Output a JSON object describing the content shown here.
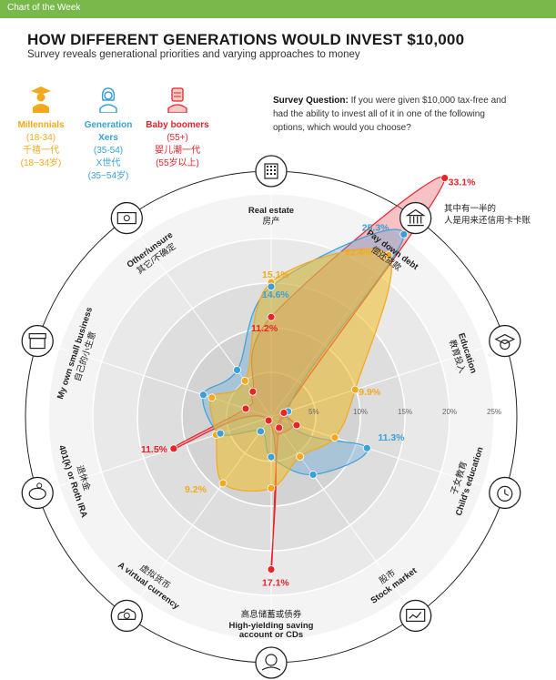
{
  "header": {
    "tag": "Chart of the Week"
  },
  "title": "HOW DIFFERENT GENERATIONS WOULD INVEST $10,000",
  "subtitle": "Survey reveals generational priorities and varying approaches to money",
  "survey": {
    "label": "Survey Question:",
    "text": "If you were given $10,000 tax-free and had the ability to invest all of it in one of the following options, which would you choose?"
  },
  "colors": {
    "millennials": "#f2a91e",
    "genx": "#3aa0d8",
    "boomers": "#e8232a",
    "bar": "#79b84a"
  },
  "generations": [
    {
      "en": "Millennials",
      "range": "(18-34)",
      "cn": "千禧一代",
      "cn_range": "(18~34岁)",
      "color": "#f2a91e",
      "icon": "graduate-icon"
    },
    {
      "en": "Generation Xers",
      "range": "(35-54)",
      "cn": "X世代",
      "cn_range": "(35~54岁)",
      "color": "#3aa0d8",
      "icon": "woman-icon"
    },
    {
      "en": "Baby boomers",
      "range": "(55+)",
      "cn": "婴儿潮一代",
      "cn_range": "(55岁以上)",
      "color": "#e8232a",
      "icon": "man-icon"
    }
  ],
  "chart_data": {
    "type": "radar",
    "rmax": 25,
    "ticks": [
      5,
      10,
      15,
      20,
      25
    ],
    "tick_labels": [
      "5%",
      "10%",
      "15%",
      "20%",
      "25%"
    ],
    "categories": [
      {
        "en": "Real estate",
        "cn": "房产",
        "icon": "building-icon"
      },
      {
        "en": "Pay down debt",
        "cn": "偿还贷款",
        "icon": "bank-icon"
      },
      {
        "en": "Education",
        "cn": "教育投入",
        "icon": "graduation-cap-icon"
      },
      {
        "en": "Child's education",
        "cn": "子女教育",
        "icon": "alarm-clock-icon"
      },
      {
        "en": "Stock market",
        "cn": "股市",
        "icon": "chart-board-icon"
      },
      {
        "en": "High-yielding saving account or CDs",
        "cn": "高息储蓄或债券",
        "icon": "money-hand-icon"
      },
      {
        "en": "A virtual currency",
        "cn": "虚拟货币",
        "icon": "cloud-coin-icon"
      },
      {
        "en": "401(k) or Roth IRA",
        "cn": "退休金",
        "icon": "piggy-bank-icon"
      },
      {
        "en": "My own small business",
        "cn": "自己的小生意",
        "icon": "shop-icon"
      },
      {
        "en": "Other/unsure",
        "cn": "其它/不确定",
        "icon": "cash-icon"
      }
    ],
    "side_note": "其中有一半的人是用来还信用卡卡账",
    "series": [
      {
        "name": "Millennials",
        "color": "#f2a91e",
        "values": [
          15.1,
          22.4,
          9.9,
          7.5,
          5.5,
          8.0,
          9.2,
          6.5,
          7.0,
          5.0
        ]
      },
      {
        "name": "Generation Xers",
        "color": "#3aa0d8",
        "values": [
          14.6,
          25.3,
          2.0,
          11.3,
          8.0,
          4.5,
          2.0,
          6.0,
          8.0,
          6.5
        ]
      },
      {
        "name": "Baby boomers",
        "color": "#e8232a",
        "values": [
          11.2,
          33.1,
          1.5,
          3.0,
          1.5,
          17.1,
          0.5,
          11.5,
          3.0,
          3.5
        ]
      }
    ],
    "data_labels": [
      {
        "text": "33.1%",
        "series": 2,
        "axis": 1
      },
      {
        "text": "25.3%",
        "series": 1,
        "axis": 1
      },
      {
        "text": "22.4%",
        "series": 0,
        "axis": 1
      },
      {
        "text": "15.1%",
        "series": 0,
        "axis": 0
      },
      {
        "text": "14.6%",
        "series": 1,
        "axis": 0
      },
      {
        "text": "11.2%",
        "series": 2,
        "axis": 0
      },
      {
        "text": "9.9%",
        "series": 0,
        "axis": 2
      },
      {
        "text": "11.3%",
        "series": 1,
        "axis": 3
      },
      {
        "text": "11.5%",
        "series": 2,
        "axis": 7
      },
      {
        "text": "9.2%",
        "series": 0,
        "axis": 6
      },
      {
        "text": "17.1%",
        "series": 2,
        "axis": 5
      }
    ]
  }
}
